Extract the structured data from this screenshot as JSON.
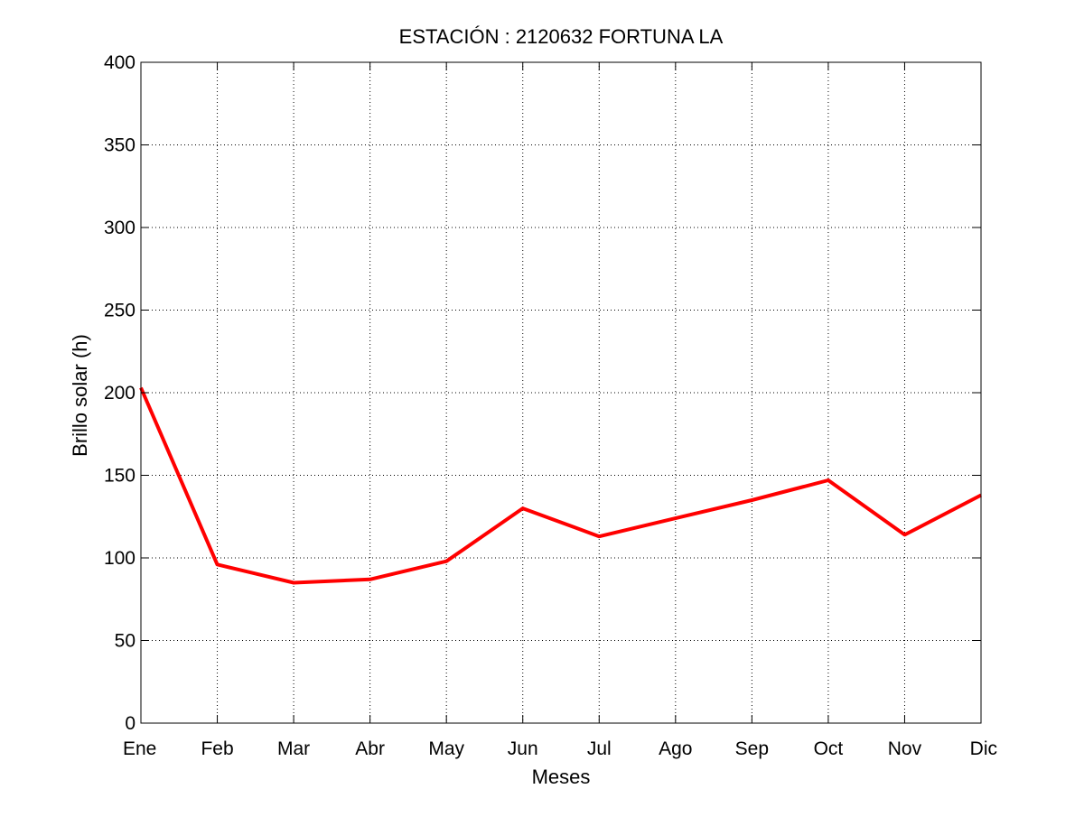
{
  "chart_data": {
    "type": "line",
    "title": "ESTACIÓN :  2120632  FORTUNA LA",
    "xlabel": "Meses",
    "ylabel": "Brillo solar (h)",
    "categories": [
      "Ene",
      "Feb",
      "Mar",
      "Abr",
      "May",
      "Jun",
      "Jul",
      "Ago",
      "Sep",
      "Oct",
      "Nov",
      "Dic"
    ],
    "series": [
      {
        "values": [
          203,
          96,
          85,
          87,
          98,
          130,
          113,
          124,
          135,
          147,
          114,
          138
        ],
        "color": "#ff0000"
      }
    ],
    "ylim": [
      0,
      400
    ],
    "yticks": [
      0,
      50,
      100,
      150,
      200,
      250,
      300,
      350,
      400
    ],
    "grid": true,
    "legend": "none"
  }
}
